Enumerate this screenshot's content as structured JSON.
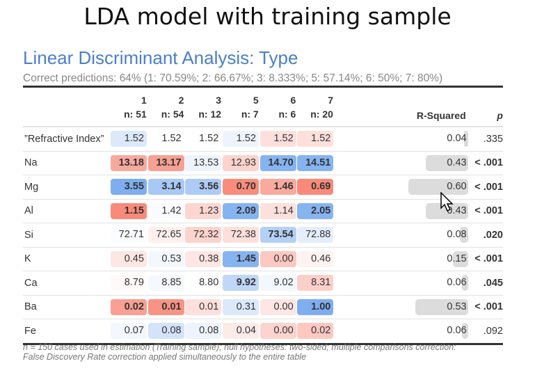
{
  "title": "LDA model with training sample",
  "subtitle": "Linear Discriminant Analysis: Type",
  "correct_predictions": "Correct predictions: 64% (1: 70.59%; 2: 66.67%; 3: 8.333%; 5: 57.14%; 6: 50%; 7: 80%)",
  "columns": [
    {
      "label": "1",
      "n": "n: 51"
    },
    {
      "label": "2",
      "n": "n: 54"
    },
    {
      "label": "3",
      "n": "n: 12"
    },
    {
      "label": "5",
      "n": "n: 7"
    },
    {
      "label": "6",
      "n": "n: 6"
    },
    {
      "label": "7",
      "n": "n: 20"
    }
  ],
  "rsq_header": "R-Squared",
  "p_header": "p",
  "rows": [
    {
      "label": "”Refractive Index”",
      "cells": [
        {
          "v": "1.52",
          "c": "#dce9fb"
        },
        {
          "v": "1.52",
          "c": ""
        },
        {
          "v": "1.52",
          "c": ""
        },
        {
          "v": "1.52",
          "c": "#eef4fd"
        },
        {
          "v": "1.52",
          "c": "#fde0dc"
        },
        {
          "v": "1.52",
          "c": "#fde0dc"
        }
      ],
      "rsq": "0.04",
      "p": ".335",
      "p_bold": false
    },
    {
      "label": "Na",
      "cells": [
        {
          "v": "13.18",
          "c": "#f8a99e",
          "b": true
        },
        {
          "v": "13.17",
          "c": "#f7a093",
          "b": true
        },
        {
          "v": "13.53",
          "c": "#eef4fd"
        },
        {
          "v": "12.93",
          "c": "#fcd3cd"
        },
        {
          "v": "14.70",
          "c": "#86b4f0",
          "b": true
        },
        {
          "v": "14.51",
          "c": "#86b4f0",
          "b": true
        }
      ],
      "rsq": "0.43",
      "p": "< .001",
      "p_bold": true
    },
    {
      "label": "Mg",
      "cells": [
        {
          "v": "3.55",
          "c": "#7eaef0",
          "b": true
        },
        {
          "v": "3.14",
          "c": "#a8c8f5",
          "b": true
        },
        {
          "v": "3.56",
          "c": "#aecbf5",
          "b": true
        },
        {
          "v": "0.70",
          "c": "#f98c7b",
          "b": true
        },
        {
          "v": "1.46",
          "c": "#f9a99e",
          "b": true
        },
        {
          "v": "0.69",
          "c": "#f98a79",
          "b": true
        }
      ],
      "rsq": "0.60",
      "p": "< .001",
      "p_bold": true
    },
    {
      "label": "Al",
      "cells": [
        {
          "v": "1.15",
          "c": "#f98a79",
          "b": true
        },
        {
          "v": "1.42",
          "c": "#fafcff"
        },
        {
          "v": "1.23",
          "c": "#fdd6d0"
        },
        {
          "v": "2.09",
          "c": "#86b4f0",
          "b": true
        },
        {
          "v": "1.14",
          "c": "#fde0dc"
        },
        {
          "v": "2.05",
          "c": "#86b4f0",
          "b": true
        }
      ],
      "rsq": "0.43",
      "p": "< .001",
      "p_bold": true
    },
    {
      "label": "Si",
      "cells": [
        {
          "v": "72.71",
          "c": "#fafcff"
        },
        {
          "v": "72.65",
          "c": "#fff0ee"
        },
        {
          "v": "72.32",
          "c": "#fcd3cd"
        },
        {
          "v": "72.38",
          "c": "#fde0dc"
        },
        {
          "v": "73.54",
          "c": "#b4d0f6",
          "b": true
        },
        {
          "v": "72.88",
          "c": "#e4eefc"
        }
      ],
      "rsq": "0.08",
      "p": ".020",
      "p_bold": true
    },
    {
      "label": "K",
      "cells": [
        {
          "v": "0.45",
          "c": "#fde6e3"
        },
        {
          "v": "0.53",
          "c": "#f3f7fe"
        },
        {
          "v": "0.38",
          "c": "#fde6e3"
        },
        {
          "v": "1.45",
          "c": "#86b4f0",
          "b": true
        },
        {
          "v": "0.00",
          "c": "#fcc8c1"
        },
        {
          "v": "0.46",
          "c": "#fff3f1"
        }
      ],
      "rsq": "0.15",
      "p": "< .001",
      "p_bold": true
    },
    {
      "label": "Ca",
      "cells": [
        {
          "v": "8.79",
          "c": "#fffaf9"
        },
        {
          "v": "8.85",
          "c": "#f5f8fe"
        },
        {
          "v": "8.80",
          "c": ""
        },
        {
          "v": "9.92",
          "c": "#c0d7f8",
          "b": true
        },
        {
          "v": "9.02",
          "c": "#f3f7fe"
        },
        {
          "v": "8.31",
          "c": "#fcd0ca"
        }
      ],
      "rsq": "0.06",
      "p": ".045",
      "p_bold": true
    },
    {
      "label": "Ba",
      "cells": [
        {
          "v": "0.02",
          "c": "#f99f93",
          "b": true
        },
        {
          "v": "0.01",
          "c": "#f99384",
          "b": true
        },
        {
          "v": "0.01",
          "c": "#fde0dc"
        },
        {
          "v": "0.31",
          "c": "#dce9fb"
        },
        {
          "v": "0.00",
          "c": "#fde6e3"
        },
        {
          "v": "1.00",
          "c": "#7eaef0",
          "b": true
        }
      ],
      "rsq": "0.53",
      "p": "< .001",
      "p_bold": true
    },
    {
      "label": "Fe",
      "cells": [
        {
          "v": "0.07",
          "c": "#f3f7fe"
        },
        {
          "v": "0.08",
          "c": "#d2e3fa"
        },
        {
          "v": "0.08",
          "c": "#eef4fd"
        },
        {
          "v": "0.04",
          "c": "#fdebe8"
        },
        {
          "v": "0.00",
          "c": "#fcd3cd"
        },
        {
          "v": "0.02",
          "c": "#fcc8c1"
        }
      ],
      "rsq": "0.06",
      "p": ".092",
      "p_bold": false
    }
  ],
  "footnote_line1": "n = 150 cases used in estimation (Training sample); null hypotheses: two-sided; multiple comparisons correction:",
  "footnote_line2": "False Discovery Rate correction applied simultaneously to the entire table"
}
